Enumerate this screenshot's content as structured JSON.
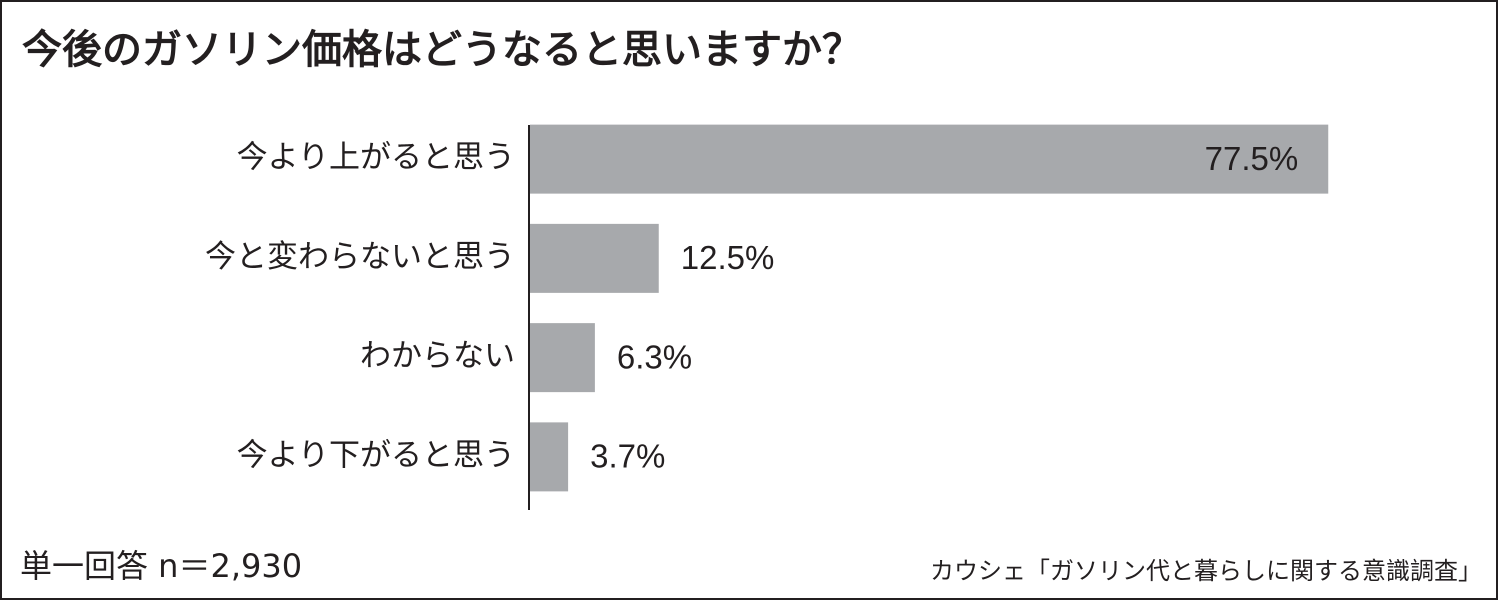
{
  "chart_data": {
    "type": "bar",
    "orientation": "horizontal",
    "title": "今後のガソリン価格はどうなると思いますか？",
    "categories": [
      "今より上がると思う",
      "今と変わらないと思う",
      "わからない",
      "今より下がると思う"
    ],
    "values": [
      77.5,
      12.5,
      6.3,
      3.7
    ],
    "value_labels": [
      "77.5%",
      "12.5%",
      "6.3%",
      "3.7%"
    ],
    "color": "#a7a9ac",
    "note": "単一回答 n＝2,930",
    "source": "カウシェ「ガソリン代と暮らしに関する意識調査」"
  }
}
